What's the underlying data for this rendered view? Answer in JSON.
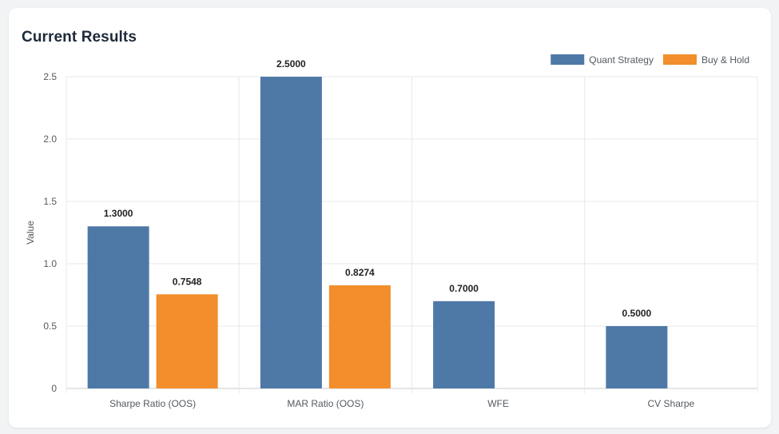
{
  "card": {
    "title": "Current Results"
  },
  "chart_data": {
    "type": "bar",
    "title": "Current Results",
    "xlabel": "",
    "ylabel": "Value",
    "ylim": [
      0,
      2.5
    ],
    "yticks": [
      0,
      0.5,
      1.0,
      1.5,
      2.0,
      2.5
    ],
    "ytick_labels": [
      "0",
      "0.5",
      "1.0",
      "1.5",
      "2.0",
      "2.5"
    ],
    "grid": true,
    "legend_position": "top-right",
    "categories": [
      "Sharpe Ratio (OOS)",
      "MAR Ratio (OOS)",
      "WFE",
      "CV Sharpe"
    ],
    "series": [
      {
        "name": "Quant Strategy",
        "color": "#4e79a7",
        "values": [
          1.3,
          2.5,
          0.7,
          0.5
        ],
        "labels": [
          "1.3000",
          "2.5000",
          "0.7000",
          "0.5000"
        ]
      },
      {
        "name": "Buy & Hold",
        "color": "#f28e2b",
        "values": [
          0.7548,
          0.8274,
          null,
          null
        ],
        "labels": [
          "0.7548",
          "0.8274",
          "",
          ""
        ]
      }
    ]
  }
}
